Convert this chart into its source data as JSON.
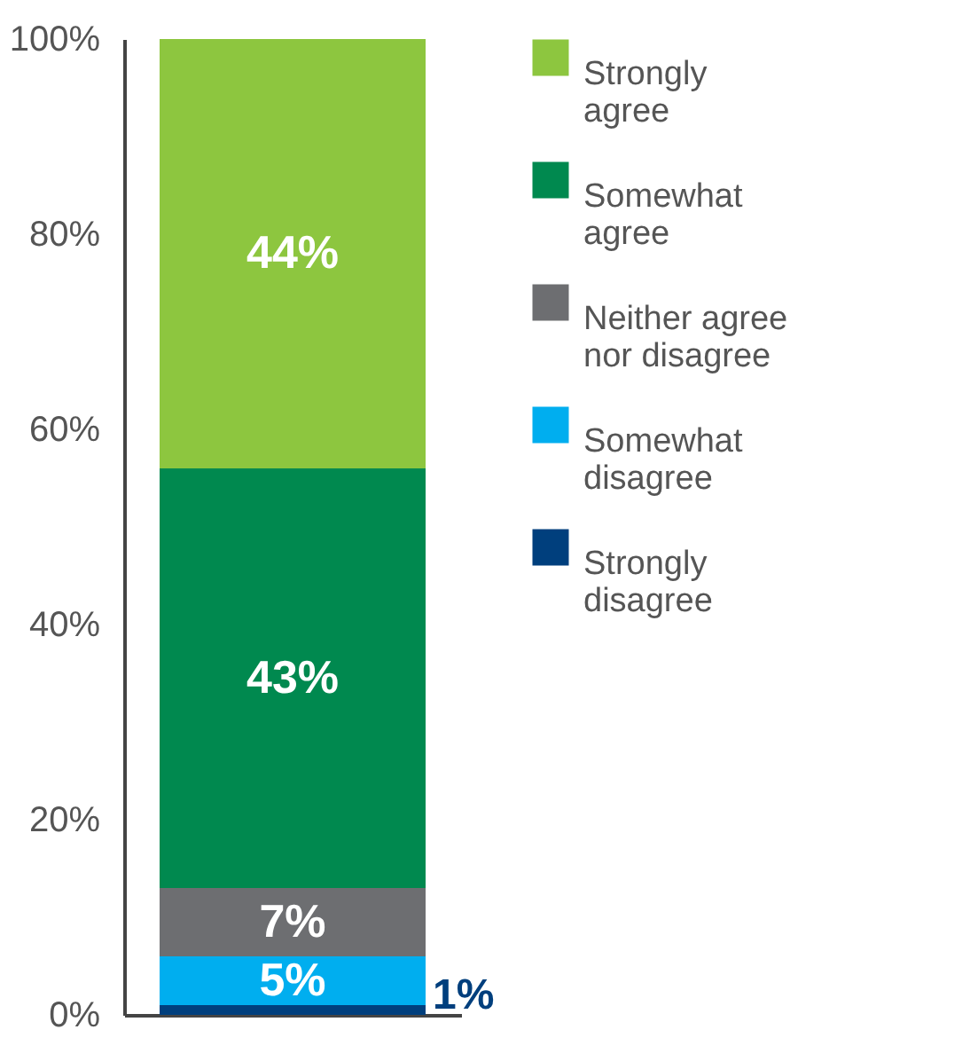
{
  "chart_data": {
    "type": "bar",
    "stacked": true,
    "categories": [
      null
    ],
    "series": [
      {
        "name": "Strongly disagree",
        "color": "#003f7d",
        "values": [
          1
        ],
        "value_labels": [
          "1%"
        ]
      },
      {
        "name": "Somewhat disagree",
        "color": "#00aeef",
        "values": [
          5
        ],
        "value_labels": [
          "5%"
        ]
      },
      {
        "name": "Neither agree nor disagree",
        "color": "#6d6e71",
        "values": [
          7
        ],
        "value_labels": [
          "7%"
        ]
      },
      {
        "name": "Somewhat agree",
        "color": "#00894f",
        "values": [
          43
        ],
        "value_labels": [
          "43%"
        ]
      },
      {
        "name": "Strongly agree",
        "color": "#8dc63f",
        "values": [
          44
        ],
        "value_labels": [
          "44%"
        ]
      }
    ],
    "ylim": [
      0,
      100
    ],
    "yticks": [
      {
        "value": 0,
        "label": "0%"
      },
      {
        "value": 20,
        "label": "20%"
      },
      {
        "value": 40,
        "label": "40%"
      },
      {
        "value": 60,
        "label": "60%"
      },
      {
        "value": 80,
        "label": "80%"
      },
      {
        "value": 100,
        "label": "100%"
      }
    ],
    "tick_labels": "y",
    "grid": false,
    "legend": "right"
  }
}
